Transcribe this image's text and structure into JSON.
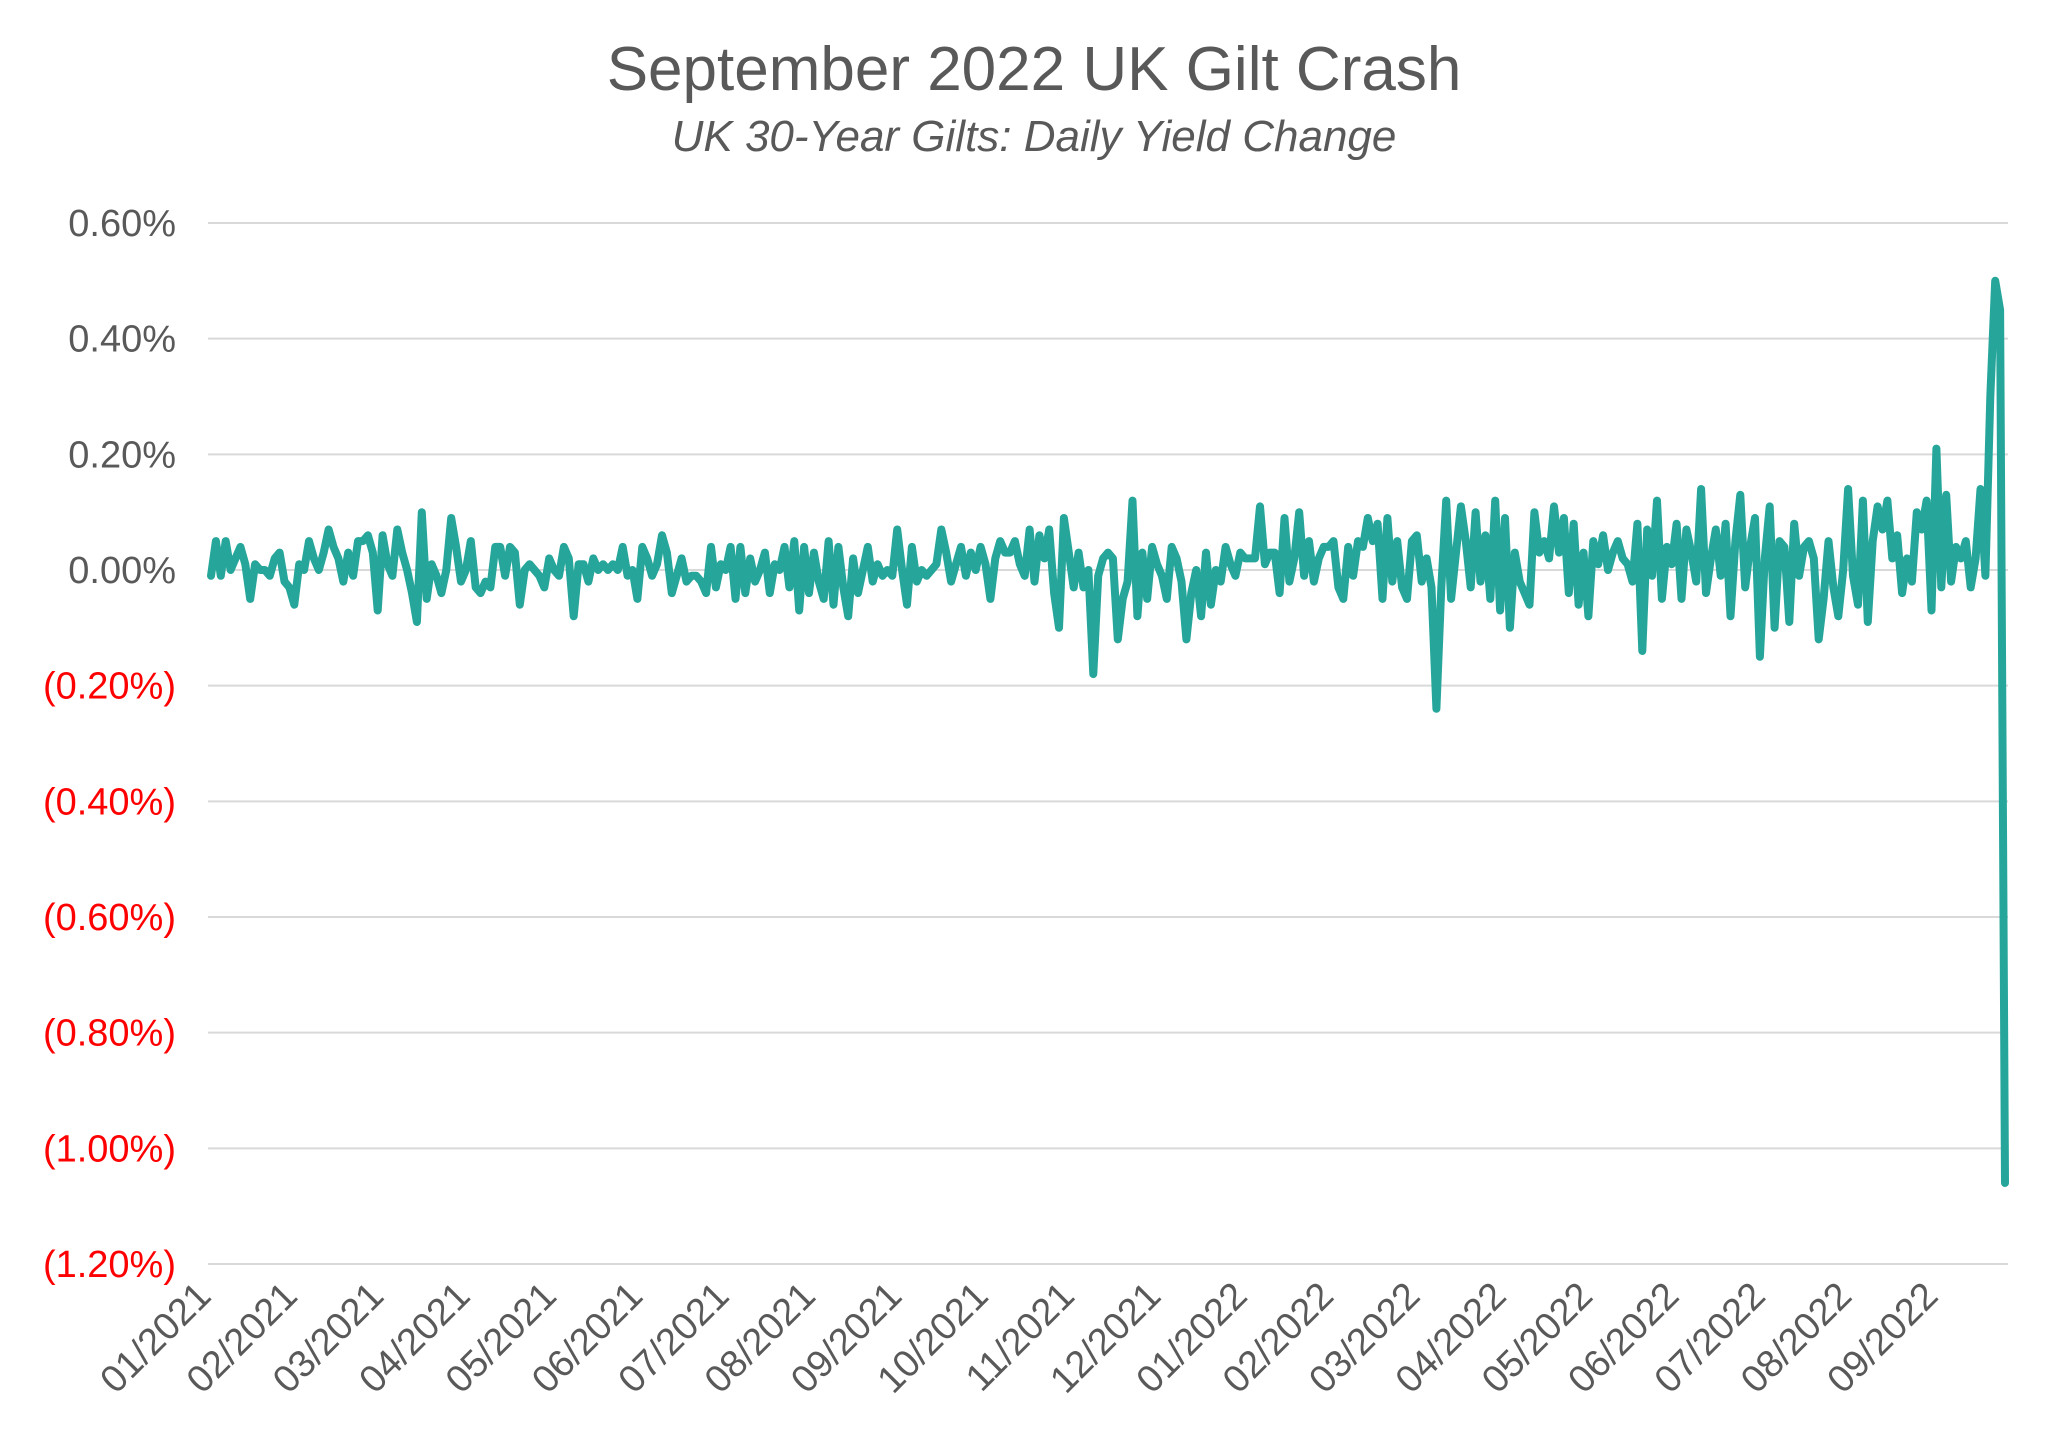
{
  "chart_data": {
    "type": "line",
    "title": "September 2022 UK Gilt Crash",
    "subtitle": "UK 30-Year Gilts: Daily Yield Change",
    "xlabel": "",
    "ylabel": "",
    "ylim": [
      -1.2,
      0.6
    ],
    "yticks": [
      0.6,
      0.4,
      0.2,
      0.0,
      -0.2,
      -0.4,
      -0.6,
      -0.8,
      -1.0,
      -1.2
    ],
    "ytick_labels": [
      "0.60%",
      "0.40%",
      "0.20%",
      "0.00%",
      "(0.20%)",
      "(0.40%)",
      "(0.60%)",
      "(0.80%)",
      "(1.00%)",
      "(1.20%)"
    ],
    "xtick_labels": [
      "01/2021",
      "02/2021",
      "03/2021",
      "04/2021",
      "05/2021",
      "06/2021",
      "07/2021",
      "08/2021",
      "09/2021",
      "10/2021",
      "11/2021",
      "12/2021",
      "01/2022",
      "02/2022",
      "03/2022",
      "04/2022",
      "05/2022",
      "06/2022",
      "07/2022",
      "08/2022",
      "09/2022"
    ],
    "grid": true,
    "legend": "none",
    "colors": {
      "line": "#26a69a",
      "negative_label": "#ff0000",
      "positive_label": "#595959",
      "grid": "#d9d9d9"
    },
    "series": [
      {
        "values": [
          -0.01,
          0.05,
          -0.01,
          0.05,
          0.0,
          0.02,
          0.04,
          0.01,
          -0.05,
          0.01,
          0.0,
          0.0,
          -0.01,
          0.02,
          0.03,
          -0.02,
          -0.03,
          -0.06,
          0.01,
          0.0,
          0.05,
          0.02,
          0.0,
          0.03,
          0.07,
          0.04,
          0.02,
          -0.02,
          0.03,
          -0.01,
          0.05,
          0.05,
          0.06,
          0.03,
          -0.07,
          0.06,
          0.01,
          -0.01,
          0.07,
          0.03,
          0.0,
          -0.04,
          -0.09,
          0.1,
          -0.05,
          0.01,
          -0.01,
          -0.04,
          0.0,
          0.09,
          0.04,
          -0.02,
          0.0,
          0.05,
          -0.03,
          -0.04,
          -0.02,
          -0.03,
          0.04,
          0.04,
          -0.01,
          0.04,
          0.03,
          -0.06,
          0.0,
          0.01,
          0.0,
          -0.01,
          -0.03,
          0.02,
          0.0,
          -0.01,
          0.04,
          0.02,
          -0.08,
          0.01,
          0.01,
          -0.02,
          0.02,
          0.0,
          0.01,
          0.0,
          0.01,
          0.0,
          0.04,
          -0.01,
          0.0,
          -0.05,
          0.04,
          0.02,
          -0.01,
          0.01,
          0.06,
          0.03,
          -0.04,
          -0.01,
          0.02,
          -0.02,
          -0.01,
          -0.01,
          -0.02,
          -0.04,
          0.04,
          -0.03,
          0.01,
          0.0,
          0.04,
          -0.05,
          0.04,
          -0.04,
          0.02,
          -0.02,
          0.0,
          0.03,
          -0.04,
          0.01,
          0.0,
          0.04,
          -0.03,
          0.05,
          -0.07,
          0.04,
          -0.04,
          0.03,
          -0.02,
          -0.05,
          0.05,
          -0.06,
          0.04,
          -0.03,
          -0.08,
          0.02,
          -0.04,
          0.0,
          0.04,
          -0.02,
          0.01,
          -0.01,
          0.0,
          -0.01,
          0.07,
          0.0,
          -0.06,
          0.04,
          -0.02,
          0.0,
          -0.01,
          0.0,
          0.01,
          0.07,
          0.03,
          -0.02,
          0.01,
          0.04,
          -0.01,
          0.03,
          0.0,
          0.04,
          0.01,
          -0.05,
          0.02,
          0.05,
          0.03,
          0.03,
          0.05,
          0.01,
          -0.01,
          0.07,
          -0.02,
          0.06,
          0.02,
          0.07,
          -0.04,
          -0.1,
          0.09,
          0.03,
          -0.03,
          0.03,
          -0.03,
          0.0,
          -0.18,
          -0.01,
          0.02,
          0.03,
          0.02,
          -0.12,
          -0.05,
          -0.02,
          0.12,
          -0.08,
          0.03,
          -0.05,
          0.04,
          0.01,
          -0.01,
          -0.05,
          0.04,
          0.02,
          -0.02,
          -0.12,
          -0.04,
          0.0,
          -0.08,
          0.03,
          -0.06,
          0.0,
          -0.02,
          0.04,
          0.01,
          -0.01,
          0.03,
          0.02,
          0.02,
          0.02,
          0.11,
          0.01,
          0.03,
          0.03,
          -0.04,
          0.09,
          -0.02,
          0.02,
          0.1,
          -0.01,
          0.05,
          -0.02,
          0.02,
          0.04,
          0.04,
          0.05,
          -0.03,
          -0.05,
          0.04,
          -0.01,
          0.05,
          0.04,
          0.09,
          0.05,
          0.08,
          -0.05,
          0.09,
          -0.02,
          0.05,
          -0.03,
          -0.05,
          0.05,
          0.06,
          -0.02,
          0.02,
          -0.03,
          -0.24,
          -0.03,
          0.12,
          -0.05,
          0.03,
          0.11,
          0.05,
          -0.03,
          0.1,
          -0.02,
          0.06,
          -0.05,
          0.12,
          -0.07,
          0.09,
          -0.1,
          0.03,
          -0.02,
          -0.04,
          -0.06,
          0.1,
          0.03,
          0.05,
          0.02,
          0.11,
          0.03,
          0.09,
          -0.04,
          0.08,
          -0.06,
          0.03,
          -0.08,
          0.05,
          0.01,
          0.06,
          0.0,
          0.03,
          0.05,
          0.02,
          0.01,
          -0.02,
          0.08,
          -0.14,
          0.07,
          -0.01,
          0.12,
          -0.05,
          0.04,
          0.01,
          0.08,
          -0.05,
          0.07,
          0.03,
          -0.02,
          0.14,
          -0.04,
          0.02,
          0.07,
          -0.01,
          0.08,
          -0.08,
          0.05,
          0.13,
          -0.03,
          0.04,
          0.09,
          -0.15,
          0.02,
          0.11,
          -0.1,
          0.05,
          0.04,
          -0.09,
          0.08,
          -0.01,
          0.04,
          0.05,
          0.02,
          -0.12,
          -0.05,
          0.05,
          -0.03,
          -0.08,
          0.0,
          0.14,
          -0.01,
          -0.06,
          0.12,
          -0.09,
          0.05,
          0.11,
          0.07,
          0.12,
          0.02,
          0.06,
          -0.04,
          0.02,
          -0.02,
          0.1,
          0.07,
          0.12,
          -0.07,
          0.21,
          -0.03,
          0.13,
          -0.02,
          0.04,
          0.02,
          0.05,
          -0.03,
          0.02,
          0.14,
          -0.01,
          0.3,
          0.5,
          0.45,
          -1.06
        ]
      }
    ]
  }
}
